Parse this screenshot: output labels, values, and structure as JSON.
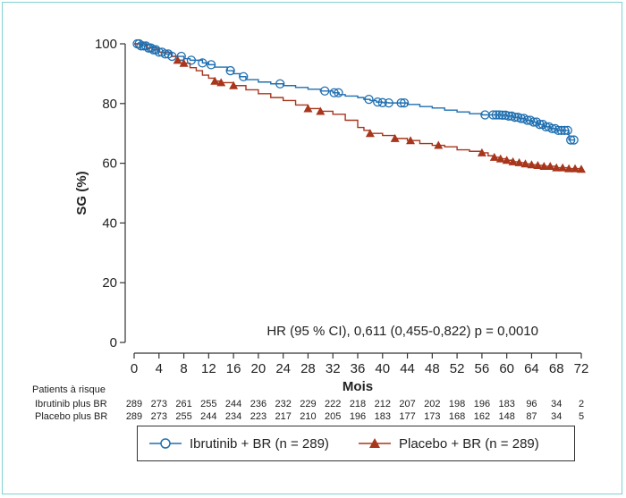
{
  "chart_data": {
    "type": "line",
    "subtype": "kaplan-meier",
    "ylabel": "SG (%)",
    "xlabel": "Mois",
    "xlim": [
      0,
      72
    ],
    "ylim": [
      0,
      100
    ],
    "x_ticks": [
      0,
      4,
      8,
      12,
      16,
      20,
      24,
      28,
      32,
      36,
      40,
      44,
      48,
      52,
      56,
      60,
      64,
      68,
      72
    ],
    "y_ticks": [
      0,
      20,
      40,
      60,
      80,
      100
    ],
    "annotation": "HR (95 % CI), 0,611 (0,455-0,822) p = 0,0010",
    "series": [
      {
        "name": "Ibrutinib + BR (n = 289)",
        "risk_label": "Ibrutinib plus BR",
        "color": "#1f6fb0",
        "marker": "circle",
        "x": [
          0,
          1,
          2,
          3,
          4,
          5,
          6,
          8,
          9,
          11,
          12,
          13,
          15,
          16,
          17,
          18,
          20,
          22,
          24,
          26,
          28,
          30,
          32,
          33,
          34,
          36,
          37,
          38,
          39,
          40,
          41,
          42,
          44,
          46,
          48,
          50,
          52,
          54,
          56,
          57,
          58,
          59,
          60,
          61,
          62,
          63,
          64,
          65,
          66,
          67,
          68,
          69,
          70,
          71
        ],
        "y": [
          100,
          99.3,
          98.6,
          98,
          97.2,
          96.6,
          95.8,
          95,
          94.5,
          93.6,
          93,
          92.2,
          91,
          90,
          89,
          88,
          87.2,
          86.6,
          86,
          85.4,
          84.8,
          84.2,
          83.6,
          83,
          82.5,
          82,
          81.4,
          81,
          80.5,
          80.3,
          80.2,
          80.2,
          79.7,
          79,
          78.5,
          77.8,
          77.2,
          76.6,
          76.2,
          76.2,
          76.2,
          76.1,
          75.8,
          75.4,
          75,
          74.4,
          73.8,
          73,
          72.2,
          71.6,
          71,
          71,
          67.8,
          67.8
        ],
        "censor_x": [
          0.5,
          0.8,
          1.1,
          1.5,
          1.9,
          2.3,
          2.7,
          3.1,
          3.5,
          4,
          4.5,
          5,
          5.5,
          6.1,
          7.6,
          9.2,
          11,
          12.4,
          15.5,
          17.6,
          23.5,
          30.7,
          32.2,
          32.9,
          37.8,
          39.2,
          40,
          41,
          43,
          43.5,
          56.5,
          57.8,
          58.3,
          58.8,
          59.3,
          59.8,
          60.3,
          60.8,
          61.3,
          61.8,
          62.3,
          62.8,
          63.3,
          63.8,
          64.3,
          64.8,
          65.3,
          65.8,
          66.3,
          66.8,
          67.3,
          67.8,
          68.3,
          68.8,
          69.3,
          69.8,
          70.3,
          70.8
        ]
      },
      {
        "name": "Placebo + BR (n = 289)",
        "risk_label": "Placebo plus BR",
        "color": "#a8361c",
        "marker": "triangle",
        "x": [
          0,
          2,
          4,
          6,
          7,
          8,
          9,
          10,
          11,
          12,
          13,
          14,
          16,
          18,
          20,
          22,
          24,
          26,
          28,
          30,
          32,
          34,
          36,
          37,
          38,
          40,
          42,
          44,
          46,
          48,
          50,
          52,
          54,
          56,
          57,
          58,
          59,
          60,
          61,
          62,
          63,
          64,
          65,
          66,
          68,
          70,
          72
        ],
        "y": [
          100,
          98.6,
          97.2,
          95.8,
          94.5,
          93.5,
          92,
          91,
          89.5,
          88.5,
          87.5,
          87,
          86,
          84.6,
          83.3,
          82,
          81,
          79.5,
          78.3,
          77.4,
          76.4,
          74.4,
          72,
          71,
          70,
          69.3,
          68.3,
          67.6,
          66.6,
          66,
          65.5,
          64.5,
          64,
          63.5,
          62.5,
          62,
          61.5,
          61,
          60.5,
          60.2,
          59.8,
          59.5,
          59.3,
          59,
          58.5,
          58.2,
          58
        ]
      }
    ],
    "risk_table": {
      "title": "Patients à risque",
      "x": [
        0,
        4,
        8,
        12,
        16,
        20,
        24,
        28,
        32,
        36,
        40,
        44,
        48,
        52,
        56,
        60,
        64,
        68,
        72
      ],
      "rows": [
        [
          "289",
          "273",
          "261",
          "255",
          "244",
          "236",
          "232",
          "229",
          "222",
          "218",
          "212",
          "207",
          "202",
          "198",
          "196",
          "183",
          "96",
          "34",
          "2"
        ],
        [
          "289",
          "273",
          "255",
          "244",
          "234",
          "223",
          "217",
          "210",
          "205",
          "196",
          "183",
          "177",
          "173",
          "168",
          "162",
          "148",
          "87",
          "34",
          "5"
        ]
      ]
    }
  },
  "legend": {
    "ibrutinib": "Ibrutinib + BR (n = 289)",
    "placebo": "Placebo + BR (n = 289)"
  }
}
